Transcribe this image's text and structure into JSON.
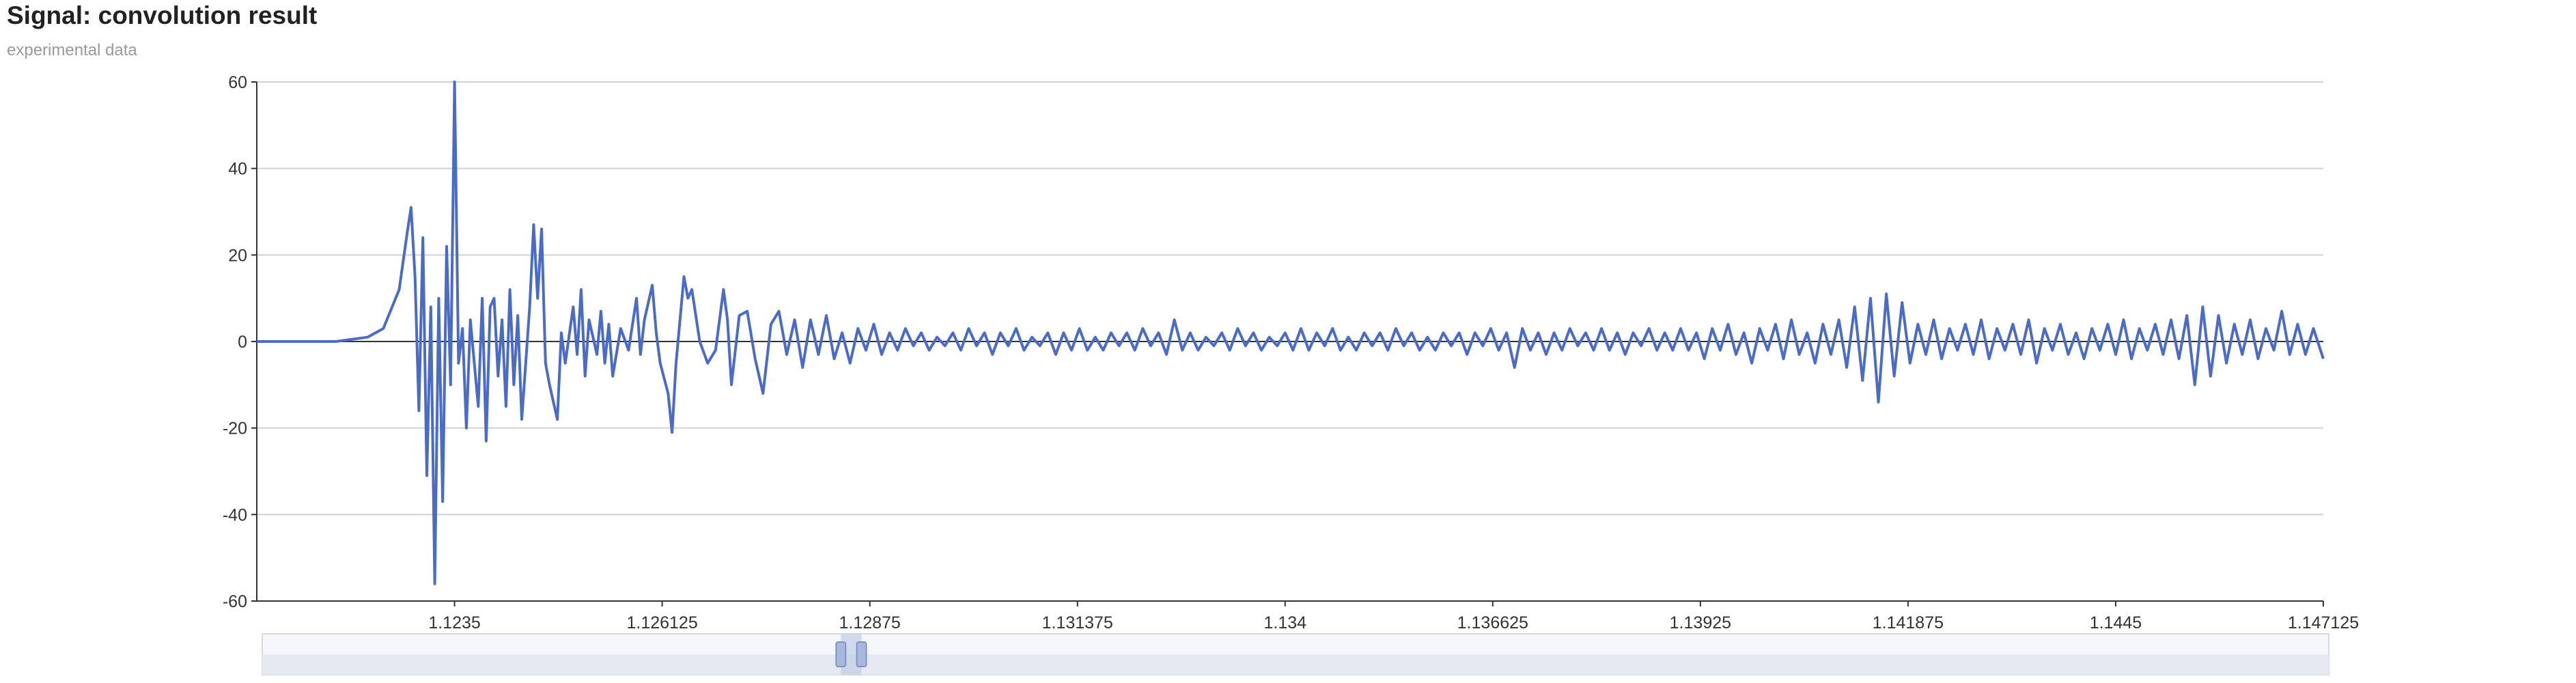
{
  "chart_data": {
    "type": "line",
    "title": "Signal: convolution result",
    "subtitle": "experimental data",
    "xlabel": "",
    "ylabel": "",
    "x_range": [
      1.121,
      1.147125
    ],
    "ylim": [
      -60,
      60
    ],
    "y_ticks": [
      60,
      40,
      20,
      0,
      -20,
      -40,
      -60
    ],
    "x_ticks": [
      {
        "value": 1.1235,
        "label": "1.1235"
      },
      {
        "value": 1.126125,
        "label": "1.126125"
      },
      {
        "value": 1.12875,
        "label": "1.12875"
      },
      {
        "value": 1.131375,
        "label": "1.131375"
      },
      {
        "value": 1.134,
        "label": "1.134"
      },
      {
        "value": 1.136625,
        "label": "1.136625"
      },
      {
        "value": 1.13925,
        "label": "1.13925"
      },
      {
        "value": 1.141875,
        "label": "1.141875"
      },
      {
        "value": 1.1445,
        "label": "1.1445"
      },
      {
        "value": 1.147125,
        "label": "1.147125"
      }
    ],
    "grid": true,
    "line_color": "#4a6bc7",
    "series": [
      {
        "name": "",
        "points": [
          [
            1.121,
            0
          ],
          [
            1.1215,
            0
          ],
          [
            1.122,
            0
          ],
          [
            1.1222,
            0.5
          ],
          [
            1.1224,
            1
          ],
          [
            1.1226,
            3
          ],
          [
            1.1228,
            12
          ],
          [
            1.1229,
            25
          ],
          [
            1.12295,
            31
          ],
          [
            1.123,
            15
          ],
          [
            1.12305,
            -16
          ],
          [
            1.1231,
            24
          ],
          [
            1.12315,
            -31
          ],
          [
            1.1232,
            8
          ],
          [
            1.12325,
            -56
          ],
          [
            1.1233,
            10
          ],
          [
            1.12335,
            -37
          ],
          [
            1.1234,
            22
          ],
          [
            1.12345,
            -10
          ],
          [
            1.1235,
            60
          ],
          [
            1.12355,
            -5
          ],
          [
            1.1236,
            3
          ],
          [
            1.12365,
            -20
          ],
          [
            1.1237,
            5
          ],
          [
            1.1238,
            -15
          ],
          [
            1.12385,
            10
          ],
          [
            1.1239,
            -23
          ],
          [
            1.12395,
            8
          ],
          [
            1.124,
            10
          ],
          [
            1.12405,
            -8
          ],
          [
            1.1241,
            5
          ],
          [
            1.12415,
            -15
          ],
          [
            1.1242,
            12
          ],
          [
            1.12425,
            -10
          ],
          [
            1.1243,
            6
          ],
          [
            1.12435,
            -18
          ],
          [
            1.1244,
            -5
          ],
          [
            1.12445,
            8
          ],
          [
            1.1245,
            27
          ],
          [
            1.12455,
            10
          ],
          [
            1.1246,
            26
          ],
          [
            1.12465,
            -5
          ],
          [
            1.1247,
            -10
          ],
          [
            1.1248,
            -18
          ],
          [
            1.12485,
            2
          ],
          [
            1.1249,
            -5
          ],
          [
            1.125,
            8
          ],
          [
            1.12505,
            -3
          ],
          [
            1.1251,
            12
          ],
          [
            1.12515,
            -8
          ],
          [
            1.1252,
            5
          ],
          [
            1.1253,
            -3
          ],
          [
            1.12535,
            7
          ],
          [
            1.1254,
            -5
          ],
          [
            1.12545,
            4
          ],
          [
            1.1255,
            -8
          ],
          [
            1.1256,
            3
          ],
          [
            1.1257,
            -2
          ],
          [
            1.1258,
            10
          ],
          [
            1.12585,
            -3
          ],
          [
            1.1259,
            5
          ],
          [
            1.126,
            13
          ],
          [
            1.12605,
            2
          ],
          [
            1.1261,
            -5
          ],
          [
            1.1262,
            -12
          ],
          [
            1.12625,
            -21
          ],
          [
            1.1263,
            -5
          ],
          [
            1.1264,
            15
          ],
          [
            1.12645,
            10
          ],
          [
            1.1265,
            12
          ],
          [
            1.1266,
            0
          ],
          [
            1.1267,
            -5
          ],
          [
            1.1268,
            -2
          ],
          [
            1.1269,
            12
          ],
          [
            1.12695,
            5
          ],
          [
            1.127,
            -10
          ],
          [
            1.1271,
            6
          ],
          [
            1.1272,
            7
          ],
          [
            1.1273,
            -4
          ],
          [
            1.1274,
            -12
          ],
          [
            1.1275,
            4
          ],
          [
            1.1276,
            7
          ],
          [
            1.1277,
            -3
          ],
          [
            1.1278,
            5
          ],
          [
            1.1279,
            -6
          ],
          [
            1.128,
            5
          ],
          [
            1.1281,
            -3
          ],
          [
            1.1282,
            6
          ],
          [
            1.1283,
            -4
          ],
          [
            1.1284,
            2
          ],
          [
            1.1285,
            -5
          ],
          [
            1.1286,
            3
          ],
          [
            1.1287,
            -2
          ],
          [
            1.1288,
            4
          ],
          [
            1.1289,
            -3
          ],
          [
            1.129,
            2
          ],
          [
            1.1291,
            -2
          ],
          [
            1.1292,
            3
          ],
          [
            1.1293,
            -1
          ],
          [
            1.1294,
            2
          ],
          [
            1.1295,
            -2
          ],
          [
            1.1296,
            1
          ],
          [
            1.1297,
            -1
          ],
          [
            1.1298,
            2
          ],
          [
            1.1299,
            -2
          ],
          [
            1.13,
            3
          ],
          [
            1.1301,
            -1
          ],
          [
            1.1302,
            2
          ],
          [
            1.1303,
            -3
          ],
          [
            1.1304,
            2
          ],
          [
            1.1305,
            -1
          ],
          [
            1.1306,
            3
          ],
          [
            1.1307,
            -2
          ],
          [
            1.1308,
            1
          ],
          [
            1.1309,
            -1
          ],
          [
            1.131,
            2
          ],
          [
            1.1311,
            -3
          ],
          [
            1.1312,
            2
          ],
          [
            1.1313,
            -2
          ],
          [
            1.1314,
            3
          ],
          [
            1.1315,
            -2
          ],
          [
            1.1316,
            1
          ],
          [
            1.1317,
            -2
          ],
          [
            1.1318,
            2
          ],
          [
            1.1319,
            -1
          ],
          [
            1.132,
            2
          ],
          [
            1.1321,
            -2
          ],
          [
            1.1322,
            3
          ],
          [
            1.1323,
            -1
          ],
          [
            1.1324,
            2
          ],
          [
            1.1325,
            -3
          ],
          [
            1.1326,
            5
          ],
          [
            1.1327,
            -2
          ],
          [
            1.1328,
            2
          ],
          [
            1.1329,
            -2
          ],
          [
            1.133,
            1
          ],
          [
            1.1331,
            -1
          ],
          [
            1.1332,
            2
          ],
          [
            1.1333,
            -2
          ],
          [
            1.1334,
            3
          ],
          [
            1.1335,
            -1
          ],
          [
            1.1336,
            2
          ],
          [
            1.1337,
            -2
          ],
          [
            1.1338,
            1
          ],
          [
            1.1339,
            -1
          ],
          [
            1.134,
            2
          ],
          [
            1.1341,
            -2
          ],
          [
            1.1342,
            3
          ],
          [
            1.1343,
            -2
          ],
          [
            1.1344,
            2
          ],
          [
            1.1345,
            -1
          ],
          [
            1.1346,
            3
          ],
          [
            1.1347,
            -2
          ],
          [
            1.1348,
            1
          ],
          [
            1.1349,
            -2
          ],
          [
            1.135,
            2
          ],
          [
            1.1351,
            -1
          ],
          [
            1.1352,
            2
          ],
          [
            1.1353,
            -2
          ],
          [
            1.1354,
            3
          ],
          [
            1.1355,
            -1
          ],
          [
            1.1356,
            2
          ],
          [
            1.1357,
            -2
          ],
          [
            1.1358,
            1
          ],
          [
            1.1359,
            -2
          ],
          [
            1.136,
            2
          ],
          [
            1.1361,
            -1
          ],
          [
            1.1362,
            2
          ],
          [
            1.1363,
            -3
          ],
          [
            1.1364,
            2
          ],
          [
            1.1365,
            -1
          ],
          [
            1.1366,
            3
          ],
          [
            1.1367,
            -2
          ],
          [
            1.1368,
            2
          ],
          [
            1.1369,
            -6
          ],
          [
            1.137,
            3
          ],
          [
            1.1371,
            -2
          ],
          [
            1.1372,
            2
          ],
          [
            1.1373,
            -3
          ],
          [
            1.1374,
            2
          ],
          [
            1.1375,
            -2
          ],
          [
            1.1376,
            3
          ],
          [
            1.1377,
            -1
          ],
          [
            1.1378,
            2
          ],
          [
            1.1379,
            -2
          ],
          [
            1.138,
            3
          ],
          [
            1.1381,
            -2
          ],
          [
            1.1382,
            2
          ],
          [
            1.1383,
            -3
          ],
          [
            1.1384,
            2
          ],
          [
            1.1385,
            -1
          ],
          [
            1.1386,
            3
          ],
          [
            1.1387,
            -2
          ],
          [
            1.1388,
            2
          ],
          [
            1.1389,
            -2
          ],
          [
            1.139,
            3
          ],
          [
            1.1391,
            -2
          ],
          [
            1.1392,
            2
          ],
          [
            1.1393,
            -4
          ],
          [
            1.1394,
            3
          ],
          [
            1.1395,
            -2
          ],
          [
            1.1396,
            4
          ],
          [
            1.1397,
            -3
          ],
          [
            1.1398,
            2
          ],
          [
            1.1399,
            -5
          ],
          [
            1.14,
            3
          ],
          [
            1.1401,
            -2
          ],
          [
            1.1402,
            4
          ],
          [
            1.1403,
            -4
          ],
          [
            1.1404,
            5
          ],
          [
            1.1405,
            -3
          ],
          [
            1.1406,
            2
          ],
          [
            1.1407,
            -5
          ],
          [
            1.1408,
            4
          ],
          [
            1.1409,
            -3
          ],
          [
            1.141,
            5
          ],
          [
            1.1411,
            -6
          ],
          [
            1.1412,
            8
          ],
          [
            1.1413,
            -9
          ],
          [
            1.1414,
            10
          ],
          [
            1.1415,
            -14
          ],
          [
            1.1416,
            11
          ],
          [
            1.1417,
            -8
          ],
          [
            1.1418,
            9
          ],
          [
            1.1419,
            -5
          ],
          [
            1.142,
            4
          ],
          [
            1.1421,
            -3
          ],
          [
            1.1422,
            5
          ],
          [
            1.1423,
            -4
          ],
          [
            1.1424,
            3
          ],
          [
            1.1425,
            -2
          ],
          [
            1.1426,
            4
          ],
          [
            1.1427,
            -3
          ],
          [
            1.1428,
            5
          ],
          [
            1.1429,
            -4
          ],
          [
            1.143,
            3
          ],
          [
            1.1431,
            -2
          ],
          [
            1.1432,
            4
          ],
          [
            1.1433,
            -3
          ],
          [
            1.1434,
            5
          ],
          [
            1.1435,
            -5
          ],
          [
            1.1436,
            3
          ],
          [
            1.1437,
            -2
          ],
          [
            1.1438,
            4
          ],
          [
            1.1439,
            -3
          ],
          [
            1.144,
            2
          ],
          [
            1.1441,
            -4
          ],
          [
            1.1442,
            3
          ],
          [
            1.1443,
            -2
          ],
          [
            1.1444,
            4
          ],
          [
            1.1445,
            -3
          ],
          [
            1.1446,
            5
          ],
          [
            1.1447,
            -4
          ],
          [
            1.1448,
            3
          ],
          [
            1.1449,
            -2
          ],
          [
            1.145,
            4
          ],
          [
            1.1451,
            -3
          ],
          [
            1.1452,
            5
          ],
          [
            1.1453,
            -4
          ],
          [
            1.1454,
            6
          ],
          [
            1.1455,
            -10
          ],
          [
            1.1456,
            8
          ],
          [
            1.1457,
            -8
          ],
          [
            1.1458,
            6
          ],
          [
            1.1459,
            -5
          ],
          [
            1.146,
            4
          ],
          [
            1.1461,
            -3
          ],
          [
            1.1462,
            5
          ],
          [
            1.1463,
            -4
          ],
          [
            1.1464,
            3
          ],
          [
            1.1465,
            -2
          ],
          [
            1.1466,
            7
          ],
          [
            1.1467,
            -3
          ],
          [
            1.1468,
            4
          ],
          [
            1.1469,
            -3
          ],
          [
            1.147,
            3
          ],
          [
            1.147125,
            -4
          ]
        ]
      }
    ],
    "data_zoom": {
      "start": 0.28,
      "end": 0.29
    }
  }
}
